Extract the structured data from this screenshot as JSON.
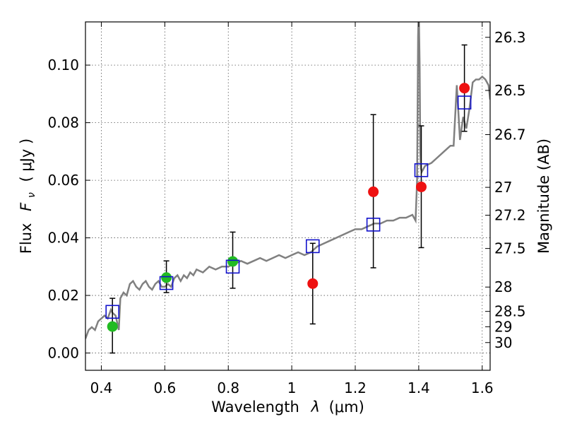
{
  "chart_data": {
    "type": "scatter",
    "xlabel_text": "Wavelength",
    "xlabel_symbol": "λ",
    "xlabel_unit": "(μm)",
    "ylabel_text": "Flux",
    "ylabel_symbol": "F",
    "ylabel_subscript": "ν",
    "ylabel_unit": "( μJy )",
    "y2label": "Magnitude (AB)",
    "xlim": [
      0.35,
      1.625
    ],
    "ylim": [
      -0.006,
      0.115
    ],
    "x_ticks": [
      {
        "value": 0.4,
        "label": "0.4"
      },
      {
        "value": 0.6,
        "label": "0.6"
      },
      {
        "value": 0.8,
        "label": "0.8"
      },
      {
        "value": 1.0,
        "label": "1"
      },
      {
        "value": 1.2,
        "label": "1.2"
      },
      {
        "value": 1.4,
        "label": "1.4"
      },
      {
        "value": 1.6,
        "label": "1.6"
      }
    ],
    "y_ticks": [
      {
        "value": 0.0,
        "label": "0.00"
      },
      {
        "value": 0.02,
        "label": "0.02"
      },
      {
        "value": 0.04,
        "label": "0.04"
      },
      {
        "value": 0.06,
        "label": "0.06"
      },
      {
        "value": 0.08,
        "label": "0.08"
      },
      {
        "value": 0.1,
        "label": "0.10"
      }
    ],
    "y2_ticks": [
      "26.3",
      "26.5",
      "26.7",
      "27",
      "27.2",
      "27.5",
      "28",
      "28.5",
      "29",
      "30"
    ],
    "grid": true,
    "sed_model": {
      "color": "#808080",
      "x": [
        0.35,
        0.36,
        0.37,
        0.38,
        0.39,
        0.4,
        0.41,
        0.42,
        0.43,
        0.435,
        0.445,
        0.455,
        0.46,
        0.47,
        0.48,
        0.49,
        0.5,
        0.51,
        0.52,
        0.53,
        0.54,
        0.55,
        0.56,
        0.57,
        0.58,
        0.59,
        0.6,
        0.61,
        0.62,
        0.63,
        0.64,
        0.65,
        0.66,
        0.67,
        0.68,
        0.69,
        0.7,
        0.72,
        0.74,
        0.76,
        0.78,
        0.8,
        0.82,
        0.84,
        0.86,
        0.88,
        0.9,
        0.92,
        0.94,
        0.96,
        0.98,
        1.0,
        1.02,
        1.04,
        1.06,
        1.08,
        1.1,
        1.12,
        1.14,
        1.16,
        1.18,
        1.2,
        1.22,
        1.24,
        1.26,
        1.28,
        1.3,
        1.32,
        1.34,
        1.36,
        1.38,
        1.39,
        1.395,
        1.398,
        1.4,
        1.403,
        1.405,
        1.407,
        1.41,
        1.42,
        1.44,
        1.46,
        1.48,
        1.5,
        1.51,
        1.52,
        1.53,
        1.54,
        1.55,
        1.56,
        1.57,
        1.58,
        1.59,
        1.6,
        1.61,
        1.62,
        1.625
      ],
      "y": [
        0.005,
        0.008,
        0.009,
        0.008,
        0.011,
        0.012,
        0.013,
        0.012,
        0.015,
        0.014,
        0.013,
        0.008,
        0.019,
        0.021,
        0.02,
        0.024,
        0.025,
        0.023,
        0.022,
        0.024,
        0.025,
        0.023,
        0.022,
        0.024,
        0.025,
        0.023,
        0.023,
        0.024,
        0.023,
        0.026,
        0.027,
        0.025,
        0.027,
        0.026,
        0.028,
        0.027,
        0.029,
        0.028,
        0.03,
        0.029,
        0.03,
        0.03,
        0.031,
        0.032,
        0.031,
        0.032,
        0.033,
        0.032,
        0.033,
        0.034,
        0.033,
        0.034,
        0.035,
        0.034,
        0.035,
        0.037,
        0.038,
        0.039,
        0.04,
        0.041,
        0.042,
        0.043,
        0.043,
        0.044,
        0.045,
        0.045,
        0.046,
        0.046,
        0.047,
        0.047,
        0.048,
        0.046,
        0.06,
        0.11,
        0.12,
        0.1,
        0.07,
        0.064,
        0.063,
        0.065,
        0.066,
        0.068,
        0.07,
        0.072,
        0.072,
        0.093,
        0.074,
        0.082,
        0.078,
        0.085,
        0.094,
        0.095,
        0.095,
        0.096,
        0.095,
        0.093,
        0.088
      ]
    },
    "series": [
      {
        "marker": "circle",
        "color": "#22bb22",
        "points": [
          {
            "x": 0.435,
            "y": 0.0092,
            "err_lo": 0.0092,
            "err_hi": 0.0098
          },
          {
            "x": 0.605,
            "y": 0.0262,
            "err_lo": 0.0052,
            "err_hi": 0.0058
          },
          {
            "x": 0.814,
            "y": 0.0318,
            "err_lo": 0.0093,
            "err_hi": 0.0102
          }
        ]
      },
      {
        "marker": "circle",
        "color": "#ee1111",
        "points": [
          {
            "x": 1.066,
            "y": 0.0241,
            "err_lo": 0.014,
            "err_hi": 0.014
          },
          {
            "x": 1.257,
            "y": 0.056,
            "err_lo": 0.0264,
            "err_hi": 0.0268
          },
          {
            "x": 1.408,
            "y": 0.0577,
            "err_lo": 0.0211,
            "err_hi": 0.0212
          },
          {
            "x": 1.544,
            "y": 0.092,
            "err_lo": 0.015,
            "err_hi": 0.015
          }
        ]
      },
      {
        "marker": "square-open",
        "color": "#1111cc",
        "points": [
          {
            "x": 0.435,
            "y": 0.0143
          },
          {
            "x": 0.605,
            "y": 0.0243
          },
          {
            "x": 0.814,
            "y": 0.03
          },
          {
            "x": 1.066,
            "y": 0.0371
          },
          {
            "x": 1.257,
            "y": 0.0446
          },
          {
            "x": 1.408,
            "y": 0.0635
          },
          {
            "x": 1.544,
            "y": 0.087
          }
        ]
      }
    ]
  }
}
